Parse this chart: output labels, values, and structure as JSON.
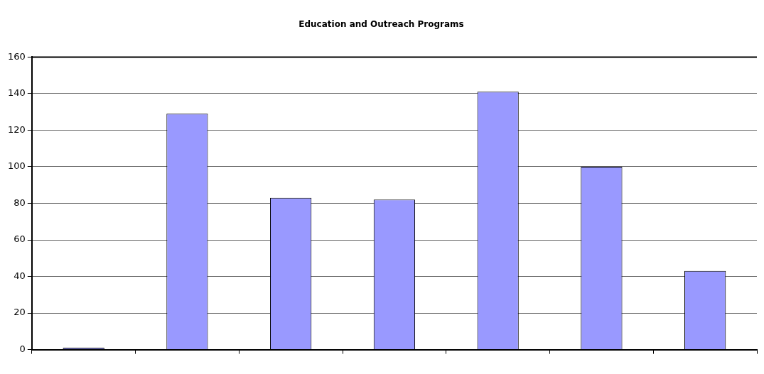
{
  "chart_data": {
    "type": "bar",
    "title": "Education and Outreach Programs",
    "categories": [
      null,
      null,
      null,
      null,
      null,
      null,
      null
    ],
    "values": [
      1,
      129,
      83,
      82,
      141,
      100,
      43
    ],
    "color": "#9999ff",
    "ylim": [
      0,
      160
    ],
    "yticks": [
      0,
      20,
      40,
      60,
      80,
      100,
      120,
      140,
      160
    ],
    "grid": "y",
    "legend": false
  }
}
